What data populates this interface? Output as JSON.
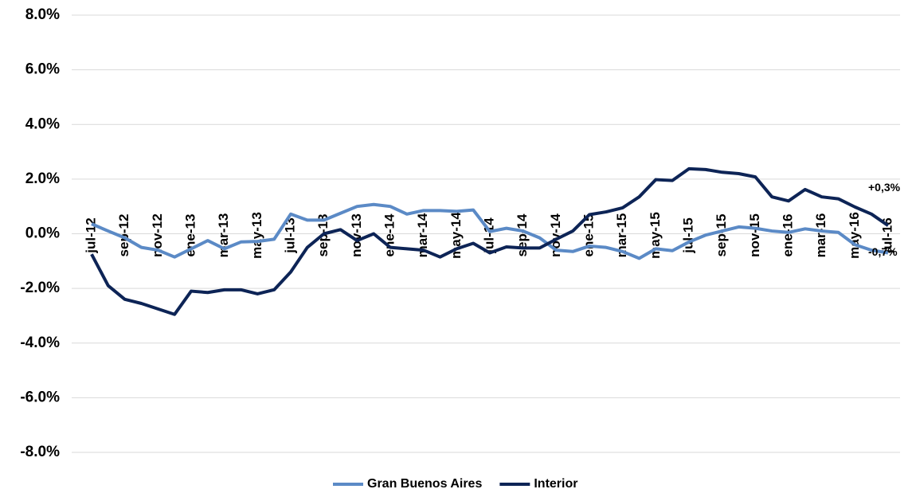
{
  "chart_data": {
    "type": "line",
    "categories": [
      "jul-12",
      null,
      "sep-12",
      null,
      "nov-12",
      null,
      "ene-13",
      null,
      "mar-13",
      null,
      "may-13",
      null,
      "jul-13",
      null,
      "sep-13",
      null,
      "nov-13",
      null,
      "ene-14",
      null,
      "mar-14",
      null,
      "may-14",
      null,
      "jul-14",
      null,
      "sep-14",
      null,
      "nov-14",
      null,
      "ene-15",
      null,
      "mar-15",
      null,
      "may-15",
      null,
      "jul-15",
      null,
      "sep-15",
      null,
      "nov-15",
      null,
      "ene-16",
      null,
      "mar-16",
      null,
      "may-16",
      null,
      "jul-16"
    ],
    "series": [
      {
        "name": "Gran Buenos Aires",
        "color": "#5b8ac6",
        "values": [
          0.36,
          0.1,
          -0.15,
          -0.5,
          -0.6,
          -0.85,
          -0.55,
          -0.25,
          -0.55,
          -0.3,
          -0.28,
          -0.2,
          0.72,
          0.5,
          0.5,
          0.75,
          1.0,
          1.07,
          1.0,
          0.72,
          0.85,
          0.85,
          0.82,
          0.87,
          0.08,
          0.2,
          0.1,
          -0.15,
          -0.6,
          -0.65,
          -0.45,
          -0.5,
          -0.65,
          -0.9,
          -0.55,
          -0.62,
          -0.3,
          -0.05,
          0.1,
          0.25,
          0.2,
          0.1,
          0.05,
          0.18,
          0.1,
          0.05,
          -0.4,
          -0.6,
          -0.7
        ],
        "value_labels": [
          null,
          null,
          null,
          null,
          null,
          null,
          null,
          null,
          null,
          null,
          null,
          null,
          null,
          null,
          null,
          null,
          null,
          null,
          null,
          null,
          null,
          null,
          null,
          null,
          null,
          null,
          null,
          null,
          null,
          null,
          null,
          null,
          null,
          null,
          null,
          null,
          null,
          null,
          null,
          null,
          null,
          null,
          null,
          null,
          null,
          null,
          null,
          null,
          "-0,7%"
        ]
      },
      {
        "name": "Interior",
        "color": "#0d2456",
        "values": [
          -0.75,
          -1.9,
          -2.4,
          -2.55,
          -2.75,
          -2.95,
          -2.1,
          -2.15,
          -2.05,
          -2.05,
          -2.2,
          -2.05,
          -1.4,
          -0.5,
          0.0,
          0.15,
          -0.25,
          0.0,
          -0.5,
          -0.55,
          -0.6,
          -0.85,
          -0.55,
          -0.35,
          -0.7,
          -0.48,
          -0.52,
          -0.52,
          -0.2,
          0.1,
          0.7,
          0.8,
          0.95,
          1.35,
          1.98,
          1.95,
          2.38,
          2.35,
          2.25,
          2.2,
          2.08,
          1.35,
          1.2,
          1.62,
          1.35,
          1.28,
          0.98,
          0.72,
          0.3
        ],
        "value_labels": [
          null,
          null,
          null,
          null,
          null,
          null,
          null,
          null,
          null,
          null,
          null,
          null,
          null,
          null,
          null,
          null,
          null,
          null,
          null,
          null,
          null,
          null,
          null,
          null,
          null,
          null,
          null,
          null,
          null,
          null,
          null,
          null,
          null,
          null,
          null,
          null,
          null,
          null,
          null,
          null,
          null,
          null,
          null,
          null,
          null,
          null,
          null,
          null,
          "+0,3%"
        ]
      }
    ],
    "ylim": [
      -8,
      8
    ],
    "yticks": [
      {
        "value": -8,
        "label": "-8.0%"
      },
      {
        "value": -6,
        "label": "-6.0%"
      },
      {
        "value": -4,
        "label": "-4.0%"
      },
      {
        "value": -2,
        "label": "-2.0%"
      },
      {
        "value": 0,
        "label": "0.0%"
      },
      {
        "value": 2,
        "label": "2.0%"
      },
      {
        "value": 4,
        "label": "4.0%"
      },
      {
        "value": 6,
        "label": "6.0%"
      },
      {
        "value": 8,
        "label": "8.0%"
      }
    ],
    "grid": true,
    "legend": "bottom"
  }
}
